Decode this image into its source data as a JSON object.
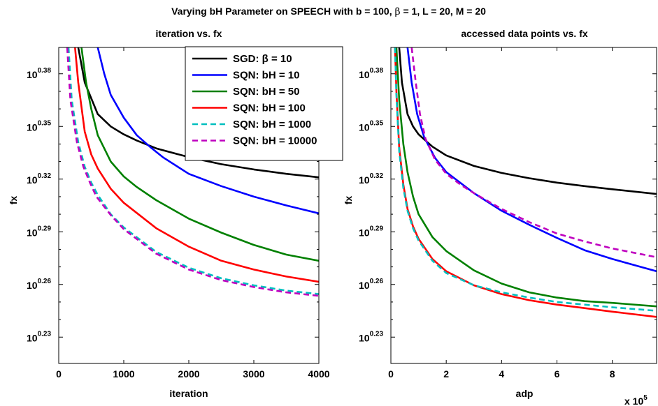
{
  "suptitle": {
    "before": "Varying bH Parameter on SPEECH with b = 100,",
    "beta_symbol": "β",
    "after": "= 1, L = 20, M = 20"
  },
  "chart_data": [
    {
      "type": "line",
      "title": "iteration vs. fx",
      "xlabel": "iteration",
      "ylabel": "fx",
      "yscale": "log",
      "xlim": [
        0,
        4000
      ],
      "ylim_exponent": [
        0.215,
        0.395
      ],
      "xticks": [
        {
          "v": 0,
          "label": "0"
        },
        {
          "v": 1000,
          "label": "1000"
        },
        {
          "v": 2000,
          "label": "2000"
        },
        {
          "v": 3000,
          "label": "3000"
        },
        {
          "v": 4000,
          "label": "4000"
        }
      ],
      "yticks": [
        {
          "e": 0.23,
          "base": "10",
          "exp": "0.23"
        },
        {
          "e": 0.26,
          "base": "10",
          "exp": "0.26"
        },
        {
          "e": 0.29,
          "base": "10",
          "exp": "0.29"
        },
        {
          "e": 0.32,
          "base": "10",
          "exp": "0.32"
        },
        {
          "e": 0.35,
          "base": "10",
          "exp": "0.35"
        },
        {
          "e": 0.38,
          "base": "10",
          "exp": "0.38"
        }
      ],
      "grid": false,
      "legend_position": "top-right",
      "series": [
        {
          "name": "SGD: β = 10",
          "color": "#000000",
          "dash": "",
          "points": [
            [
              300,
              0.395
            ],
            [
              400,
              0.375
            ],
            [
              600,
              0.357
            ],
            [
              800,
              0.35
            ],
            [
              1000,
              0.3455
            ],
            [
              1200,
              0.342
            ],
            [
              1500,
              0.3375
            ],
            [
              2000,
              0.3325
            ],
            [
              2500,
              0.3285
            ],
            [
              3000,
              0.3255
            ],
            [
              3500,
              0.323
            ],
            [
              4000,
              0.321
            ]
          ]
        },
        {
          "name": "SQN: bH = 10",
          "color": "#0000ff",
          "dash": "",
          "points": [
            [
              600,
              0.395
            ],
            [
              700,
              0.38
            ],
            [
              800,
              0.368
            ],
            [
              1000,
              0.355
            ],
            [
              1200,
              0.345
            ],
            [
              1400,
              0.3385
            ],
            [
              1600,
              0.3325
            ],
            [
              2000,
              0.323
            ],
            [
              2500,
              0.316
            ],
            [
              3000,
              0.31
            ],
            [
              3500,
              0.305
            ],
            [
              4000,
              0.3005
            ]
          ]
        },
        {
          "name": "SQN: bH = 50",
          "color": "#008000",
          "dash": "",
          "points": [
            [
              350,
              0.395
            ],
            [
              420,
              0.375
            ],
            [
              500,
              0.36
            ],
            [
              600,
              0.345
            ],
            [
              800,
              0.33
            ],
            [
              1000,
              0.3215
            ],
            [
              1200,
              0.3155
            ],
            [
              1500,
              0.308
            ],
            [
              2000,
              0.2975
            ],
            [
              2500,
              0.2895
            ],
            [
              3000,
              0.2825
            ],
            [
              3500,
              0.277
            ],
            [
              4000,
              0.2735
            ]
          ]
        },
        {
          "name": "SQN: bH = 100",
          "color": "#ff0000",
          "dash": "",
          "points": [
            [
              250,
              0.395
            ],
            [
              300,
              0.375
            ],
            [
              400,
              0.347
            ],
            [
              500,
              0.334
            ],
            [
              600,
              0.326
            ],
            [
              800,
              0.3145
            ],
            [
              1000,
              0.3065
            ],
            [
              1500,
              0.292
            ],
            [
              2000,
              0.2815
            ],
            [
              2500,
              0.2735
            ],
            [
              3000,
              0.2685
            ],
            [
              3500,
              0.2645
            ],
            [
              4000,
              0.2615
            ]
          ]
        },
        {
          "name": "SQN: bH = 1000",
          "color": "#00bfbf",
          "dash": "8,5",
          "points": [
            [
              150,
              0.395
            ],
            [
              200,
              0.365
            ],
            [
              300,
              0.341
            ],
            [
              400,
              0.327
            ],
            [
              500,
              0.318
            ],
            [
              600,
              0.311
            ],
            [
              800,
              0.3
            ],
            [
              1000,
              0.2925
            ],
            [
              1500,
              0.2785
            ],
            [
              2000,
              0.2695
            ],
            [
              2500,
              0.2635
            ],
            [
              3000,
              0.2595
            ],
            [
              3500,
              0.2565
            ],
            [
              4000,
              0.2545
            ]
          ]
        },
        {
          "name": "SQN: bH = 10000",
          "color": "#bf00bf",
          "dash": "8,5",
          "points": [
            [
              130,
              0.395
            ],
            [
              180,
              0.365
            ],
            [
              280,
              0.341
            ],
            [
              380,
              0.327
            ],
            [
              480,
              0.318
            ],
            [
              580,
              0.31
            ],
            [
              800,
              0.2995
            ],
            [
              1000,
              0.2915
            ],
            [
              1500,
              0.2775
            ],
            [
              2000,
              0.2685
            ],
            [
              2500,
              0.2625
            ],
            [
              3000,
              0.2585
            ],
            [
              3500,
              0.2555
            ],
            [
              4000,
              0.2535
            ]
          ]
        }
      ]
    },
    {
      "type": "line",
      "title": "accessed data points vs. fx",
      "xlabel": "adp",
      "ylabel": "fx",
      "yscale": "log",
      "x_multiplier_base": "x 10",
      "x_multiplier_exp": "5",
      "xlim": [
        0,
        9.6
      ],
      "ylim_exponent": [
        0.215,
        0.395
      ],
      "xticks": [
        {
          "v": 0,
          "label": "0"
        },
        {
          "v": 2,
          "label": "2"
        },
        {
          "v": 4,
          "label": "4"
        },
        {
          "v": 6,
          "label": "6"
        },
        {
          "v": 8,
          "label": "8"
        }
      ],
      "yticks": [
        {
          "e": 0.23,
          "base": "10",
          "exp": "0.23"
        },
        {
          "e": 0.26,
          "base": "10",
          "exp": "0.26"
        },
        {
          "e": 0.29,
          "base": "10",
          "exp": "0.29"
        },
        {
          "e": 0.32,
          "base": "10",
          "exp": "0.32"
        },
        {
          "e": 0.35,
          "base": "10",
          "exp": "0.35"
        },
        {
          "e": 0.38,
          "base": "10",
          "exp": "0.38"
        }
      ],
      "grid": false,
      "series": [
        {
          "name": "SGD: β = 10",
          "color": "#000000",
          "dash": "",
          "points": [
            [
              0.3,
              0.395
            ],
            [
              0.4,
              0.375
            ],
            [
              0.6,
              0.357
            ],
            [
              0.8,
              0.35
            ],
            [
              1.0,
              0.3455
            ],
            [
              1.5,
              0.3385
            ],
            [
              2,
              0.3335
            ],
            [
              3,
              0.3275
            ],
            [
              4,
              0.3235
            ],
            [
              5,
              0.3205
            ],
            [
              6,
              0.318
            ],
            [
              7,
              0.316
            ],
            [
              8,
              0.3142
            ],
            [
              9.6,
              0.3115
            ]
          ]
        },
        {
          "name": "SQN: bH = 10",
          "color": "#0000ff",
          "dash": "",
          "points": [
            [
              0.6,
              0.395
            ],
            [
              0.75,
              0.375
            ],
            [
              0.95,
              0.357
            ],
            [
              1.2,
              0.344
            ],
            [
              1.6,
              0.332
            ],
            [
              2,
              0.324
            ],
            [
              2.5,
              0.318
            ],
            [
              3,
              0.312
            ],
            [
              4,
              0.302
            ],
            [
              5,
              0.294
            ],
            [
              6,
              0.2865
            ],
            [
              7,
              0.2795
            ],
            [
              8,
              0.2745
            ],
            [
              9.6,
              0.2675
            ]
          ]
        },
        {
          "name": "SQN: bH = 50",
          "color": "#008000",
          "dash": "",
          "points": [
            [
              0.2,
              0.395
            ],
            [
              0.3,
              0.365
            ],
            [
              0.45,
              0.34
            ],
            [
              0.6,
              0.324
            ],
            [
              0.8,
              0.31
            ],
            [
              1,
              0.3
            ],
            [
              1.5,
              0.287
            ],
            [
              2,
              0.279
            ],
            [
              3,
              0.268
            ],
            [
              4,
              0.2605
            ],
            [
              5,
              0.2555
            ],
            [
              6,
              0.2525
            ],
            [
              7,
              0.2505
            ],
            [
              8,
              0.2495
            ],
            [
              9.6,
              0.2475
            ]
          ]
        },
        {
          "name": "SQN: bH = 100",
          "color": "#ff0000",
          "dash": "",
          "points": [
            [
              0.15,
              0.395
            ],
            [
              0.2,
              0.37
            ],
            [
              0.3,
              0.338
            ],
            [
              0.45,
              0.317
            ],
            [
              0.6,
              0.303
            ],
            [
              0.8,
              0.293
            ],
            [
              1,
              0.286
            ],
            [
              1.5,
              0.2745
            ],
            [
              2,
              0.2675
            ],
            [
              3,
              0.2595
            ],
            [
              4,
              0.2545
            ],
            [
              5,
              0.251
            ],
            [
              6,
              0.2485
            ],
            [
              7,
              0.2465
            ],
            [
              8,
              0.2445
            ],
            [
              9.6,
              0.2415
            ]
          ]
        },
        {
          "name": "SQN: bH = 1000",
          "color": "#00bfbf",
          "dash": "8,5",
          "points": [
            [
              0.15,
              0.395
            ],
            [
              0.2,
              0.368
            ],
            [
              0.3,
              0.336
            ],
            [
              0.45,
              0.315
            ],
            [
              0.6,
              0.302
            ],
            [
              0.8,
              0.292
            ],
            [
              1,
              0.285
            ],
            [
              1.5,
              0.2735
            ],
            [
              2,
              0.2665
            ],
            [
              3,
              0.2595
            ],
            [
              4,
              0.2555
            ],
            [
              5,
              0.2525
            ],
            [
              6,
              0.25
            ],
            [
              7,
              0.2485
            ],
            [
              8,
              0.247
            ],
            [
              9.6,
              0.245
            ]
          ]
        },
        {
          "name": "SQN: bH = 10000",
          "color": "#bf00bf",
          "dash": "8,5",
          "points": [
            [
              0.75,
              0.395
            ],
            [
              0.9,
              0.375
            ],
            [
              1.05,
              0.357
            ],
            [
              1.25,
              0.343
            ],
            [
              1.6,
              0.331
            ],
            [
              2,
              0.323
            ],
            [
              2.5,
              0.317
            ],
            [
              3,
              0.312
            ],
            [
              4,
              0.303
            ],
            [
              5,
              0.2955
            ],
            [
              6,
              0.289
            ],
            [
              7,
              0.2845
            ],
            [
              8,
              0.2805
            ],
            [
              9.6,
              0.2755
            ]
          ]
        }
      ]
    }
  ]
}
